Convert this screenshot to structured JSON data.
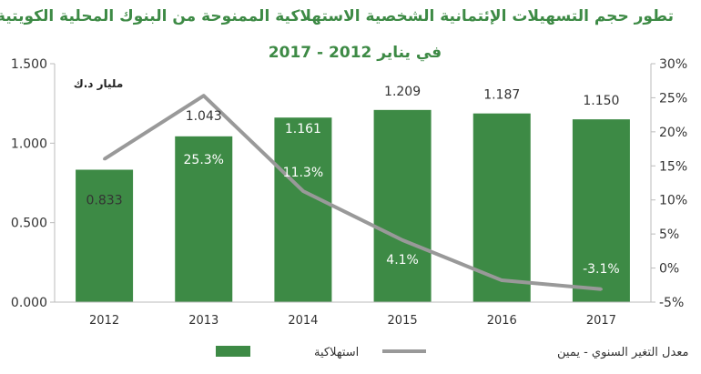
{
  "chart_data": {
    "type": "bar+line",
    "title": "تطور حجم التسهيلات الإئتمانية الشخصية   الاستهلاكية الممنوحة من البنوك المحلية الكويتية",
    "subtitle": "في يناير 2012 - 2017",
    "unit_label": "مليار د.ك",
    "categories": [
      "2012",
      "2013",
      "2014",
      "2015",
      "2016",
      "2017"
    ],
    "series": [
      {
        "name": "استهلاكية",
        "kind": "bar",
        "axis": "left",
        "values": [
          0.833,
          1.043,
          1.161,
          1.209,
          1.187,
          1.15
        ],
        "labels": [
          "0.833",
          "1.043",
          "1.161",
          "1.209",
          "1.187",
          "1.150"
        ],
        "color": "#3d8a45"
      },
      {
        "name": "معدل التغير السنوي - يمين",
        "kind": "line",
        "axis": "right",
        "values": [
          16.0,
          25.3,
          11.3,
          4.1,
          -1.8,
          -3.1
        ],
        "labels": [
          "",
          "25.3%",
          "11.3%",
          "4.1%",
          "",
          "-3.1%"
        ],
        "color": "#999999"
      }
    ],
    "y_left": {
      "min": 0,
      "max": 1.5,
      "ticks": [
        "0.000",
        "0.500",
        "1.000",
        "1.500"
      ]
    },
    "y_right": {
      "min": -5,
      "max": 30,
      "ticks": [
        "-5%",
        "0%",
        "5%",
        "10%",
        "15%",
        "20%",
        "25%",
        "30%"
      ]
    },
    "legend_position": "bottom",
    "grid": false
  }
}
